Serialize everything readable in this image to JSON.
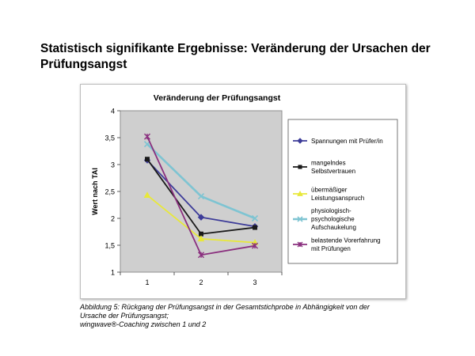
{
  "page": {
    "title": "Statistisch signifikante Ergebnisse: Veränderung der Ursachen der Prüfungsangst"
  },
  "caption": {
    "line1": "Abbildung 5: Rückgang der Prüfungsangst in der Gesamtstichprobe in Abhängigkeit von der",
    "line2": "Ursache der Prüfungsangst;",
    "line3": "wingwave®-Coaching zwischen 1 und 2"
  },
  "chart_data": {
    "type": "line",
    "title": "Veränderung der Prüfungsangst",
    "xlabel": "",
    "ylabel": "Wert nach TAI",
    "categories": [
      "1",
      "2",
      "3"
    ],
    "ylim": [
      1,
      4
    ],
    "yticks": [
      "1",
      "1,5",
      "2",
      "2,5",
      "3",
      "3,5",
      "4"
    ],
    "grid": false,
    "legend_position": "right",
    "series": [
      {
        "name": "Spannungen mit Prüfer/in",
        "values": [
          3.08,
          2.02,
          1.85
        ],
        "color": "#3d3c99",
        "marker": "diamond"
      },
      {
        "name": "mangelndes Selbstvertrauen",
        "values": [
          3.1,
          1.71,
          1.83
        ],
        "color": "#1a1a1a",
        "marker": "square"
      },
      {
        "name": "übermäßiger Leistungsanspruch",
        "values": [
          2.43,
          1.62,
          1.55
        ],
        "color": "#e8e83a",
        "marker": "triangle"
      },
      {
        "name": "physiologisch-psychologische Aufschaukelung",
        "values": [
          3.38,
          2.41,
          2.0
        ],
        "color": "#7ec4d2",
        "marker": "x"
      },
      {
        "name": "belastende Vorerfahrung mit Prüfungen",
        "values": [
          3.52,
          1.32,
          1.49
        ],
        "color": "#8a2f7e",
        "marker": "star"
      }
    ],
    "legend_lines": [
      [
        "Spannungen mit Prüfer/in"
      ],
      [
        "mangelndes",
        "Selbstvertrauen"
      ],
      [
        "übermäßiger",
        "Leistungsanspruch"
      ],
      [
        "physiologisch-",
        "psychologische",
        "Aufschaukelung"
      ],
      [
        "belastende Vorerfahrung",
        "mit Prüfungen"
      ]
    ]
  }
}
